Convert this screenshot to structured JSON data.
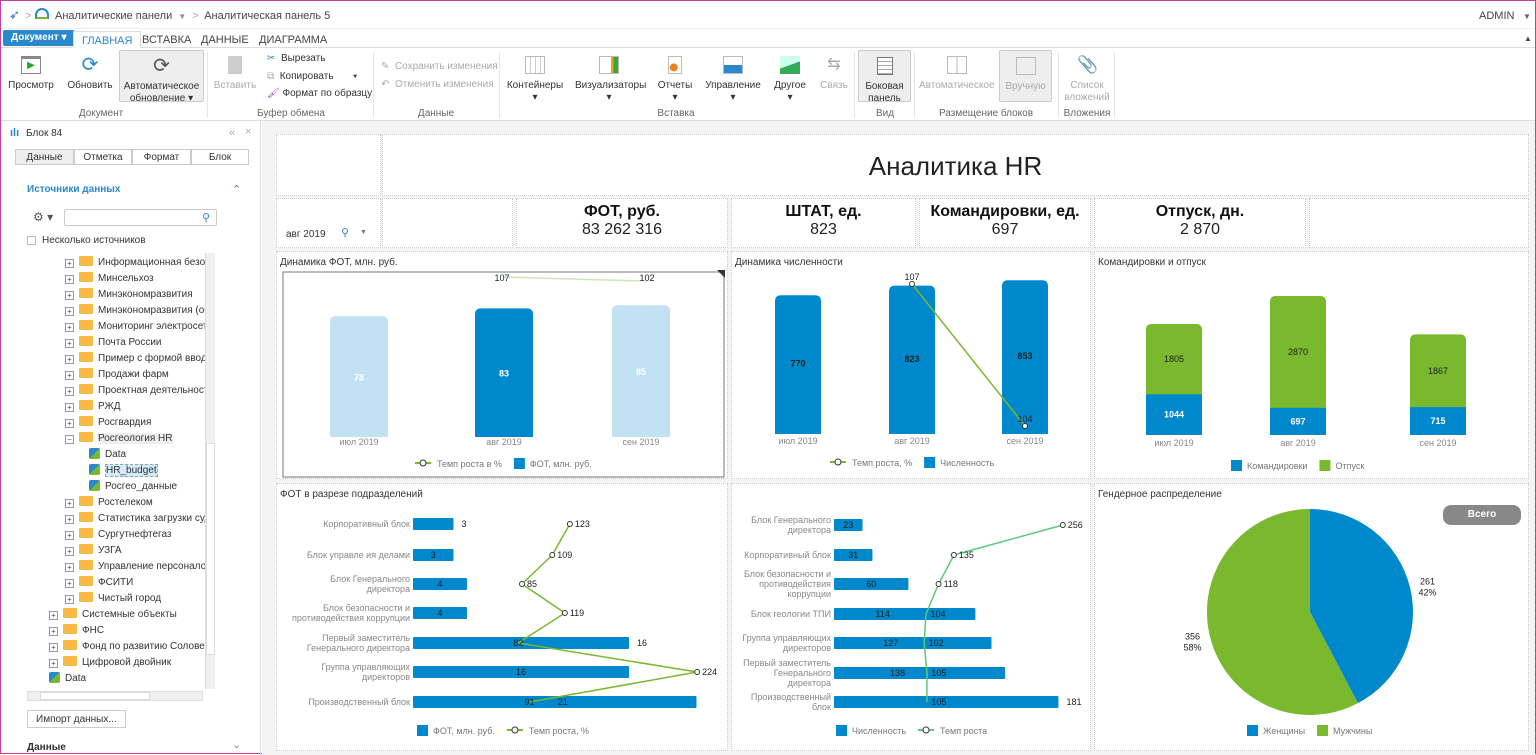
{
  "topbar": {
    "crumb1": "Аналитические панели",
    "crumb2": "Аналитическая панель 5",
    "user": "ADMIN"
  },
  "tabs": {
    "document": "Документ",
    "items": [
      "ГЛАВНАЯ",
      "ВСТАВКА",
      "ДАННЫЕ",
      "ДИАГРАММА"
    ]
  },
  "ribbon": {
    "view": "Просмотр",
    "refresh": "Обновить",
    "auto1": "Автоматическое",
    "auto2": "обновление",
    "paste": "Вставить",
    "cut": "Вырезать",
    "copy": "Копировать",
    "format": "Формат по образцу",
    "save": "Сохранить изменения",
    "undo": "Отменить изменения",
    "containers": "Контейнеры",
    "visualizers": "Визуализаторы",
    "reports": "Отчеты",
    "controls": "Управление",
    "other": "Другое",
    "link": "Связь",
    "side1": "Боковая",
    "side2": "панель",
    "autoplace": "Автоматическое",
    "manual": "Вручную",
    "att1": "Список",
    "att2": "вложений",
    "groups": [
      "Документ",
      "Буфер обмена",
      "Данные",
      "Вставка",
      "Вид",
      "Размещение блоков",
      "Вложения"
    ]
  },
  "sidebar": {
    "title": "Блок 84",
    "tabs": [
      "Данные",
      "Отметка",
      "Формат",
      "Блок"
    ],
    "section": "Источники данных",
    "search_placeholder": "",
    "multi": "Несколько источников",
    "tree": [
      {
        "label": "Информационная безопасн",
        "lvl": 2,
        "type": "folder",
        "exp": "+"
      },
      {
        "label": "Минсельхоз",
        "lvl": 2,
        "type": "folder",
        "exp": "+"
      },
      {
        "label": "Минэкономразвития",
        "lvl": 2,
        "type": "folder",
        "exp": "+"
      },
      {
        "label": "Минэкономразвития (обслу",
        "lvl": 2,
        "type": "folder",
        "exp": "+"
      },
      {
        "label": "Мониторинг электросети",
        "lvl": 2,
        "type": "folder",
        "exp": "+"
      },
      {
        "label": "Почта России",
        "lvl": 2,
        "type": "folder",
        "exp": "+"
      },
      {
        "label": "Пример с формой ввода и т",
        "lvl": 2,
        "type": "folder",
        "exp": "+"
      },
      {
        "label": "Продажи фарм",
        "lvl": 2,
        "type": "folder",
        "exp": "+"
      },
      {
        "label": "Проектная деятельность",
        "lvl": 2,
        "type": "folder",
        "exp": "+"
      },
      {
        "label": "РЖД",
        "lvl": 2,
        "type": "folder",
        "exp": "+"
      },
      {
        "label": "Росгвардия",
        "lvl": 2,
        "type": "folder",
        "exp": "+"
      },
      {
        "label": "Росгеология HR",
        "lvl": 2,
        "type": "folder",
        "exp": "−"
      },
      {
        "label": "Data",
        "lvl": 3,
        "type": "cube"
      },
      {
        "label": "HR_budget",
        "lvl": 3,
        "type": "cube",
        "selected": true
      },
      {
        "label": "Росгео_данные",
        "lvl": 3,
        "type": "cube"
      },
      {
        "label": "Ростелеком",
        "lvl": 2,
        "type": "folder",
        "exp": "+"
      },
      {
        "label": "Статистика загрузки судов",
        "lvl": 2,
        "type": "folder",
        "exp": "+"
      },
      {
        "label": "Сургутнефтегаз",
        "lvl": 2,
        "type": "folder",
        "exp": "+"
      },
      {
        "label": "УЗГА",
        "lvl": 2,
        "type": "folder",
        "exp": "+"
      },
      {
        "label": "Управление персоналом",
        "lvl": 2,
        "type": "folder",
        "exp": "+"
      },
      {
        "label": "ФСИТИ",
        "lvl": 2,
        "type": "folder",
        "exp": "+"
      },
      {
        "label": "Чистый город",
        "lvl": 2,
        "type": "folder",
        "exp": "+"
      },
      {
        "label": "Системные объекты",
        "lvl": 1,
        "type": "folder",
        "exp": "+"
      },
      {
        "label": "ФНС",
        "lvl": 1,
        "type": "folder",
        "exp": "+"
      },
      {
        "label": "Фонд по развитию Соловецкого",
        "lvl": 1,
        "type": "folder",
        "exp": "+"
      },
      {
        "label": "Цифровой двойник",
        "lvl": 1,
        "type": "folder",
        "exp": "+"
      },
      {
        "label": "Data",
        "lvl": 1,
        "type": "cube"
      }
    ],
    "import": "Импорт данных...",
    "data_section": "Данные"
  },
  "dashboard": {
    "title": "Аналитика HR",
    "filter": "авг 2019",
    "kpis": [
      {
        "title": "ФОТ, руб.",
        "value": "83 262 316"
      },
      {
        "title": "ШТАТ, ед.",
        "value": "823"
      },
      {
        "title": "Командировки, ед.",
        "value": "697"
      },
      {
        "title": "Отпуск, дн.",
        "value": "2 870"
      }
    ]
  },
  "colors": {
    "blue": "#0088cc",
    "light_blue": "#c2e2f4",
    "green": "#7ab82e",
    "line_green": "#5cc878"
  },
  "chart_data": [
    {
      "type": "bar+line",
      "title": "Динамика ФОТ, млн. руб.",
      "categories": [
        "июл 2019",
        "авг 2019",
        "сен 2019"
      ],
      "series": [
        {
          "name": "ФОТ, млн. руб.",
          "type": "bar",
          "values": [
            78,
            83,
            85
          ]
        },
        {
          "name": "Темп роста в %",
          "type": "line",
          "values": [
            null,
            107,
            102
          ]
        }
      ],
      "selected": "авг 2019",
      "ylim": [
        0,
        100
      ],
      "legend": "bottom"
    },
    {
      "type": "bar+line",
      "title": "Динамика численности",
      "categories": [
        "июл 2019",
        "авг 2019",
        "сен 2019"
      ],
      "series": [
        {
          "name": "Численность",
          "type": "bar",
          "values": [
            770,
            823,
            853
          ]
        },
        {
          "name": "Темп роста, %",
          "type": "line",
          "values": [
            null,
            107,
            104
          ]
        }
      ],
      "ylim": [
        0,
        860
      ],
      "legend": "bottom"
    },
    {
      "type": "stacked-bar",
      "title": "Командировки и отпуск",
      "categories": [
        "июл 2019",
        "авг 2019",
        "сен 2019"
      ],
      "series": [
        {
          "name": "Командировки",
          "values": [
            1044,
            697,
            715
          ]
        },
        {
          "name": "Отпуск",
          "values": [
            1805,
            2870,
            1867
          ]
        }
      ],
      "legend": "bottom"
    },
    {
      "type": "hbar+line",
      "title": "ФОТ в разрезе подразделений",
      "categories": [
        "Корпоративный блок",
        "Блок управле  ия делами",
        "Блок Генерального директора",
        "Блок безопасности и противодействия коррупции",
        "Первый заместитель Генерального директора",
        "Группа управляющих директоров",
        "Производственный блок"
      ],
      "series": [
        {
          "name": "ФОТ, млн. руб.",
          "type": "bar",
          "values": [
            3,
            3,
            4,
            4,
            16,
            16,
            21
          ]
        },
        {
          "name": "Темп роста, %",
          "type": "line",
          "values": [
            123,
            109,
            85,
            119,
            82,
            224,
            91
          ]
        }
      ],
      "legend": "bottom"
    },
    {
      "type": "hbar+line",
      "title": "",
      "categories": [
        "Блок Генерального директора",
        "Корпоративный блок",
        "Блок безопасности и противодействия коррупции",
        "Блок геологии ТПИ",
        "Группа управляющих директоров",
        "Первый заместитель Генерального директора",
        "Производственный блок"
      ],
      "series": [
        {
          "name": "Численность",
          "type": "bar",
          "values": [
            23,
            31,
            60,
            114,
            127,
            138,
            181
          ]
        },
        {
          "name": "Темп роста",
          "type": "line",
          "values": [
            256,
            135,
            118,
            104,
            102,
            105,
            105
          ]
        }
      ],
      "legend": "bottom"
    },
    {
      "type": "pie",
      "title": "Гендерное распределение",
      "button": "Всего",
      "slices": [
        {
          "name": "Женщины",
          "value": 261,
          "percent": "42%"
        },
        {
          "name": "Мужчины",
          "value": 356,
          "percent": "58%"
        }
      ],
      "legend": "bottom"
    }
  ]
}
